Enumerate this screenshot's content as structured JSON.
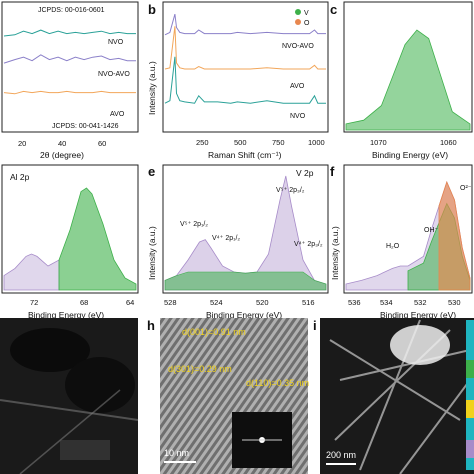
{
  "colors": {
    "nvo": "#2aa198",
    "nvo_avo": "#8b80c9",
    "avo": "#f2a65a",
    "green": "#3db04a",
    "purple": "#a78cc9",
    "orange": "#e8874f",
    "ticks_gray": "#666666",
    "tem_yellow": "#f0d21c"
  },
  "chart_data": [
    {
      "panel": "a",
      "type": "line",
      "xlabel": "2θ (degree)",
      "xticks": [
        "20",
        "40",
        "60"
      ],
      "ylabel": "",
      "labels": {
        "jcpds_top": "JCPDS: 00-016-0601",
        "jcpds_bottom": "JCPDS: 00-041-1426"
      },
      "series": [
        {
          "name": "NVO",
          "x": [
            5,
            10,
            14,
            18,
            22,
            26,
            30,
            34,
            38,
            42,
            46,
            50,
            54,
            58,
            62,
            66
          ],
          "y": [
            0.78,
            0.79,
            0.82,
            0.8,
            0.83,
            0.8,
            0.82,
            0.8,
            0.81,
            0.8,
            0.81,
            0.82,
            0.8,
            0.81,
            0.8,
            0.8
          ]
        },
        {
          "name": "NVO-AVO",
          "x": [
            5,
            10,
            14,
            18,
            22,
            26,
            30,
            34,
            38,
            42,
            46,
            50,
            54,
            58,
            62,
            66
          ],
          "y": [
            0.55,
            0.58,
            0.6,
            0.57,
            0.62,
            0.58,
            0.6,
            0.57,
            0.6,
            0.58,
            0.6,
            0.61,
            0.58,
            0.59,
            0.57,
            0.57
          ]
        },
        {
          "name": "AVO",
          "x": [
            5,
            10,
            14,
            18,
            22,
            26,
            30,
            34,
            38,
            42,
            46,
            50,
            54,
            58,
            62,
            66
          ],
          "y": [
            0.3,
            0.29,
            0.31,
            0.3,
            0.31,
            0.3,
            0.3,
            0.31,
            0.3,
            0.3,
            0.3,
            0.31,
            0.3,
            0.3,
            0.3,
            0.3
          ]
        }
      ]
    },
    {
      "panel": "b",
      "type": "line",
      "xlabel": "Raman Shift (cm⁻¹)",
      "ylabel": "Intensity (a.u.)",
      "xticks": [
        "250",
        "500",
        "750",
        "1000"
      ],
      "xlim": [
        80,
        1060
      ],
      "legend": [
        "V",
        "O"
      ],
      "series": [
        {
          "name": "NVO-AVO",
          "x": [
            80,
            110,
            140,
            150,
            170,
            200,
            260,
            285,
            320,
            400,
            480,
            520,
            600,
            700,
            800,
            900,
            960,
            990,
            1010,
            1060
          ],
          "y": [
            0.78,
            0.8,
            0.95,
            0.84,
            0.8,
            0.79,
            0.79,
            0.82,
            0.79,
            0.79,
            0.79,
            0.8,
            0.79,
            0.8,
            0.79,
            0.79,
            0.79,
            0.82,
            0.79,
            0.79
          ]
        },
        {
          "name": "AVO",
          "x": [
            80,
            110,
            140,
            150,
            170,
            200,
            260,
            285,
            320,
            400,
            480,
            520,
            600,
            700,
            800,
            900,
            960,
            990,
            1010,
            1060
          ],
          "y": [
            0.5,
            0.51,
            0.85,
            0.55,
            0.51,
            0.5,
            0.5,
            0.52,
            0.5,
            0.5,
            0.5,
            0.5,
            0.5,
            0.51,
            0.5,
            0.5,
            0.5,
            0.53,
            0.5,
            0.5
          ]
        },
        {
          "name": "NVO",
          "x": [
            80,
            110,
            140,
            150,
            170,
            200,
            260,
            285,
            320,
            400,
            480,
            520,
            600,
            700,
            800,
            900,
            960,
            990,
            1010,
            1060
          ],
          "y": [
            0.22,
            0.24,
            0.6,
            0.3,
            0.24,
            0.23,
            0.22,
            0.28,
            0.23,
            0.23,
            0.22,
            0.23,
            0.22,
            0.24,
            0.22,
            0.22,
            0.22,
            0.28,
            0.22,
            0.22
          ]
        }
      ]
    },
    {
      "panel": "c",
      "type": "area",
      "xlabel": "Binding Energy (eV)",
      "ylabel": "",
      "xticks": [
        "1070",
        "1060"
      ],
      "xlim": [
        1076,
        1055
      ],
      "series": [
        {
          "name": "",
          "x": [
            1076,
            1073,
            1070,
            1068,
            1066,
            1064,
            1062,
            1060,
            1058,
            1055
          ],
          "y": [
            0.05,
            0.08,
            0.2,
            0.45,
            0.7,
            0.82,
            0.75,
            0.45,
            0.15,
            0.05
          ]
        }
      ]
    },
    {
      "panel": "d",
      "type": "area",
      "title": "Al 2p",
      "xlabel": "Binding Energy (eV)",
      "ylabel": "",
      "xticks": [
        "72",
        "68",
        "64"
      ],
      "xlim": [
        75,
        63
      ],
      "series": [
        {
          "name": "",
          "x": [
            75,
            74,
            73,
            72.5,
            72,
            71,
            70,
            69,
            68,
            67.5,
            67,
            66,
            65,
            64,
            63
          ],
          "y": [
            0.12,
            0.18,
            0.28,
            0.3,
            0.28,
            0.2,
            0.25,
            0.5,
            0.82,
            0.85,
            0.8,
            0.55,
            0.25,
            0.1,
            0.05
          ]
        }
      ]
    },
    {
      "panel": "e",
      "type": "area",
      "title": "V 2p",
      "xlabel": "Binding Energy (eV)",
      "ylabel": "Intensity (a.u.)",
      "xticks": [
        "528",
        "524",
        "520",
        "516"
      ],
      "xlim": [
        528,
        514
      ],
      "annotations": [
        "V⁵⁺ 2p₁/₂",
        "V⁴⁺ 2p₁/₂",
        "V⁵⁺ 2p₃/₂",
        "V⁴⁺ 2p₃/₂"
      ],
      "series": [
        {
          "name": "",
          "x": [
            528,
            527,
            526,
            525,
            524.5,
            524,
            523,
            522,
            521,
            520,
            519,
            518,
            517.5,
            517,
            516,
            515,
            514
          ],
          "y": [
            0.08,
            0.12,
            0.25,
            0.4,
            0.42,
            0.35,
            0.2,
            0.15,
            0.14,
            0.15,
            0.3,
            0.75,
            0.95,
            0.7,
            0.25,
            0.08,
            0.05
          ]
        }
      ]
    },
    {
      "panel": "f",
      "type": "area",
      "xlabel": "Binding Energy (eV)",
      "ylabel": "Intensity (a.u.)",
      "xticks": [
        "536",
        "534",
        "532",
        "530"
      ],
      "xlim": [
        537,
        529
      ],
      "annotations": [
        "H₂O",
        "OH⁻",
        "O²⁻"
      ],
      "series": [
        {
          "name": "",
          "x": [
            537,
            536,
            535,
            534,
            533.5,
            533,
            532,
            531.5,
            531,
            530.5,
            530,
            529.5,
            529
          ],
          "y": [
            0.05,
            0.08,
            0.12,
            0.18,
            0.2,
            0.2,
            0.28,
            0.5,
            0.7,
            0.9,
            0.75,
            0.35,
            0.1
          ]
        }
      ]
    }
  ],
  "panels": {
    "g": {
      "label": ""
    },
    "h": {
      "label": "h",
      "annotations": [
        "d(001)=0.91 nm",
        "d(301)=0.29 nm",
        "d(110)=0.35 nm"
      ],
      "scalebar": "10 nm"
    },
    "i": {
      "label": "i",
      "scalebar": "200 nm"
    }
  },
  "panel_letters": [
    "b",
    "c",
    "e",
    "f",
    "h",
    "i"
  ]
}
